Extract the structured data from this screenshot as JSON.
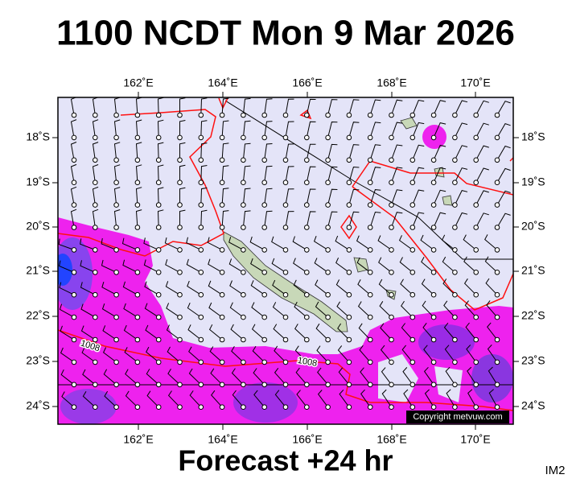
{
  "header": {
    "title": "1100 NCDT Mon 9 Mar 2026"
  },
  "map": {
    "lon_labels": [
      "162˚E",
      "164˚E",
      "166˚E",
      "168˚E",
      "170˚E"
    ],
    "lat_labels": [
      "18˚S",
      "19˚S",
      "20˚S",
      "21˚S",
      "22˚S",
      "23˚S",
      "24˚S"
    ],
    "isobar_labels": [
      "1008",
      "1008"
    ],
    "copyright": "Copyright metvuw.com"
  },
  "footer": {
    "forecast": "Forecast +24 hr",
    "image_id": "IM2"
  }
}
